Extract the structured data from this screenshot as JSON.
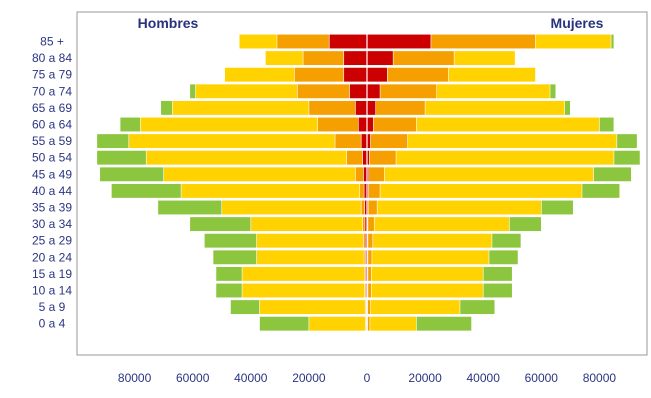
{
  "chart_data": {
    "type": "bar",
    "orientation": "horizontal",
    "stacked": true,
    "layout": "population-pyramid",
    "left_label": "Hombres",
    "right_label": "Mujeres",
    "categories": [
      "85 +",
      "80 a 84",
      "75 a 79",
      "70 a 74",
      "65 a 69",
      "60 a 64",
      "55 a 59",
      "50 a 54",
      "45 a 49",
      "40 a 44",
      "35 a 39",
      "30 a 34",
      "25 a 29",
      "20 a 24",
      "15 a 19",
      "10 a 14",
      "5 a 9",
      "0 a 4"
    ],
    "x_ticks": [
      {
        "value": -80000,
        "label": "80000"
      },
      {
        "value": -60000,
        "label": "60000"
      },
      {
        "value": -40000,
        "label": "40000"
      },
      {
        "value": -20000,
        "label": "20000"
      },
      {
        "value": 0,
        "label": "0"
      },
      {
        "value": 20000,
        "label": "20000"
      },
      {
        "value": 40000,
        "label": "40000"
      },
      {
        "value": 60000,
        "label": "60000"
      },
      {
        "value": 80000,
        "label": "80000"
      }
    ],
    "xlim": [
      -93000,
      93000
    ],
    "grid": false,
    "series_colors": [
      "#cc0000",
      "#f5a000",
      "#ffd200",
      "#8cc63f"
    ],
    "left": {
      "cumulative_values": [
        [
          13000,
          31000,
          44000,
          44000
        ],
        [
          8000,
          22000,
          35000,
          35000
        ],
        [
          8000,
          25000,
          49000,
          49000
        ],
        [
          6000,
          24000,
          59000,
          61000
        ],
        [
          4000,
          20000,
          67000,
          71000
        ],
        [
          3000,
          17000,
          78000,
          85000
        ],
        [
          2000,
          11000,
          82000,
          93000
        ],
        [
          1500,
          7000,
          76000,
          93000
        ],
        [
          1200,
          4000,
          70000,
          92000
        ],
        [
          1000,
          2500,
          64000,
          88000
        ],
        [
          800,
          2000,
          50000,
          72000
        ],
        [
          700,
          1500,
          40000,
          61000
        ],
        [
          600,
          1200,
          38000,
          56000
        ],
        [
          500,
          1000,
          38000,
          53000
        ],
        [
          500,
          900,
          43000,
          52000
        ],
        [
          400,
          800,
          43000,
          52000
        ],
        [
          300,
          600,
          37000,
          47000
        ],
        [
          300,
          500,
          20000,
          37000
        ]
      ]
    },
    "right": {
      "cumulative_values": [
        [
          22000,
          58000,
          84000,
          85000
        ],
        [
          9000,
          30000,
          51000,
          51000
        ],
        [
          7000,
          28000,
          58000,
          58000
        ],
        [
          4500,
          24000,
          63000,
          65000
        ],
        [
          3000,
          20000,
          68000,
          70000
        ],
        [
          2200,
          17000,
          80000,
          85000
        ],
        [
          1200,
          14000,
          86000,
          93000
        ],
        [
          800,
          10000,
          85000,
          94000
        ],
        [
          600,
          6000,
          78000,
          91000
        ],
        [
          500,
          4500,
          74000,
          87000
        ],
        [
          400,
          3500,
          60000,
          71000
        ],
        [
          300,
          2500,
          49000,
          60000
        ],
        [
          300,
          2000,
          43000,
          53000
        ],
        [
          300,
          1700,
          42000,
          52000
        ],
        [
          300,
          1500,
          40000,
          50000
        ],
        [
          300,
          1500,
          40000,
          50000
        ],
        [
          200,
          1200,
          32000,
          44000
        ],
        [
          200,
          1000,
          17000,
          36000
        ]
      ]
    }
  }
}
